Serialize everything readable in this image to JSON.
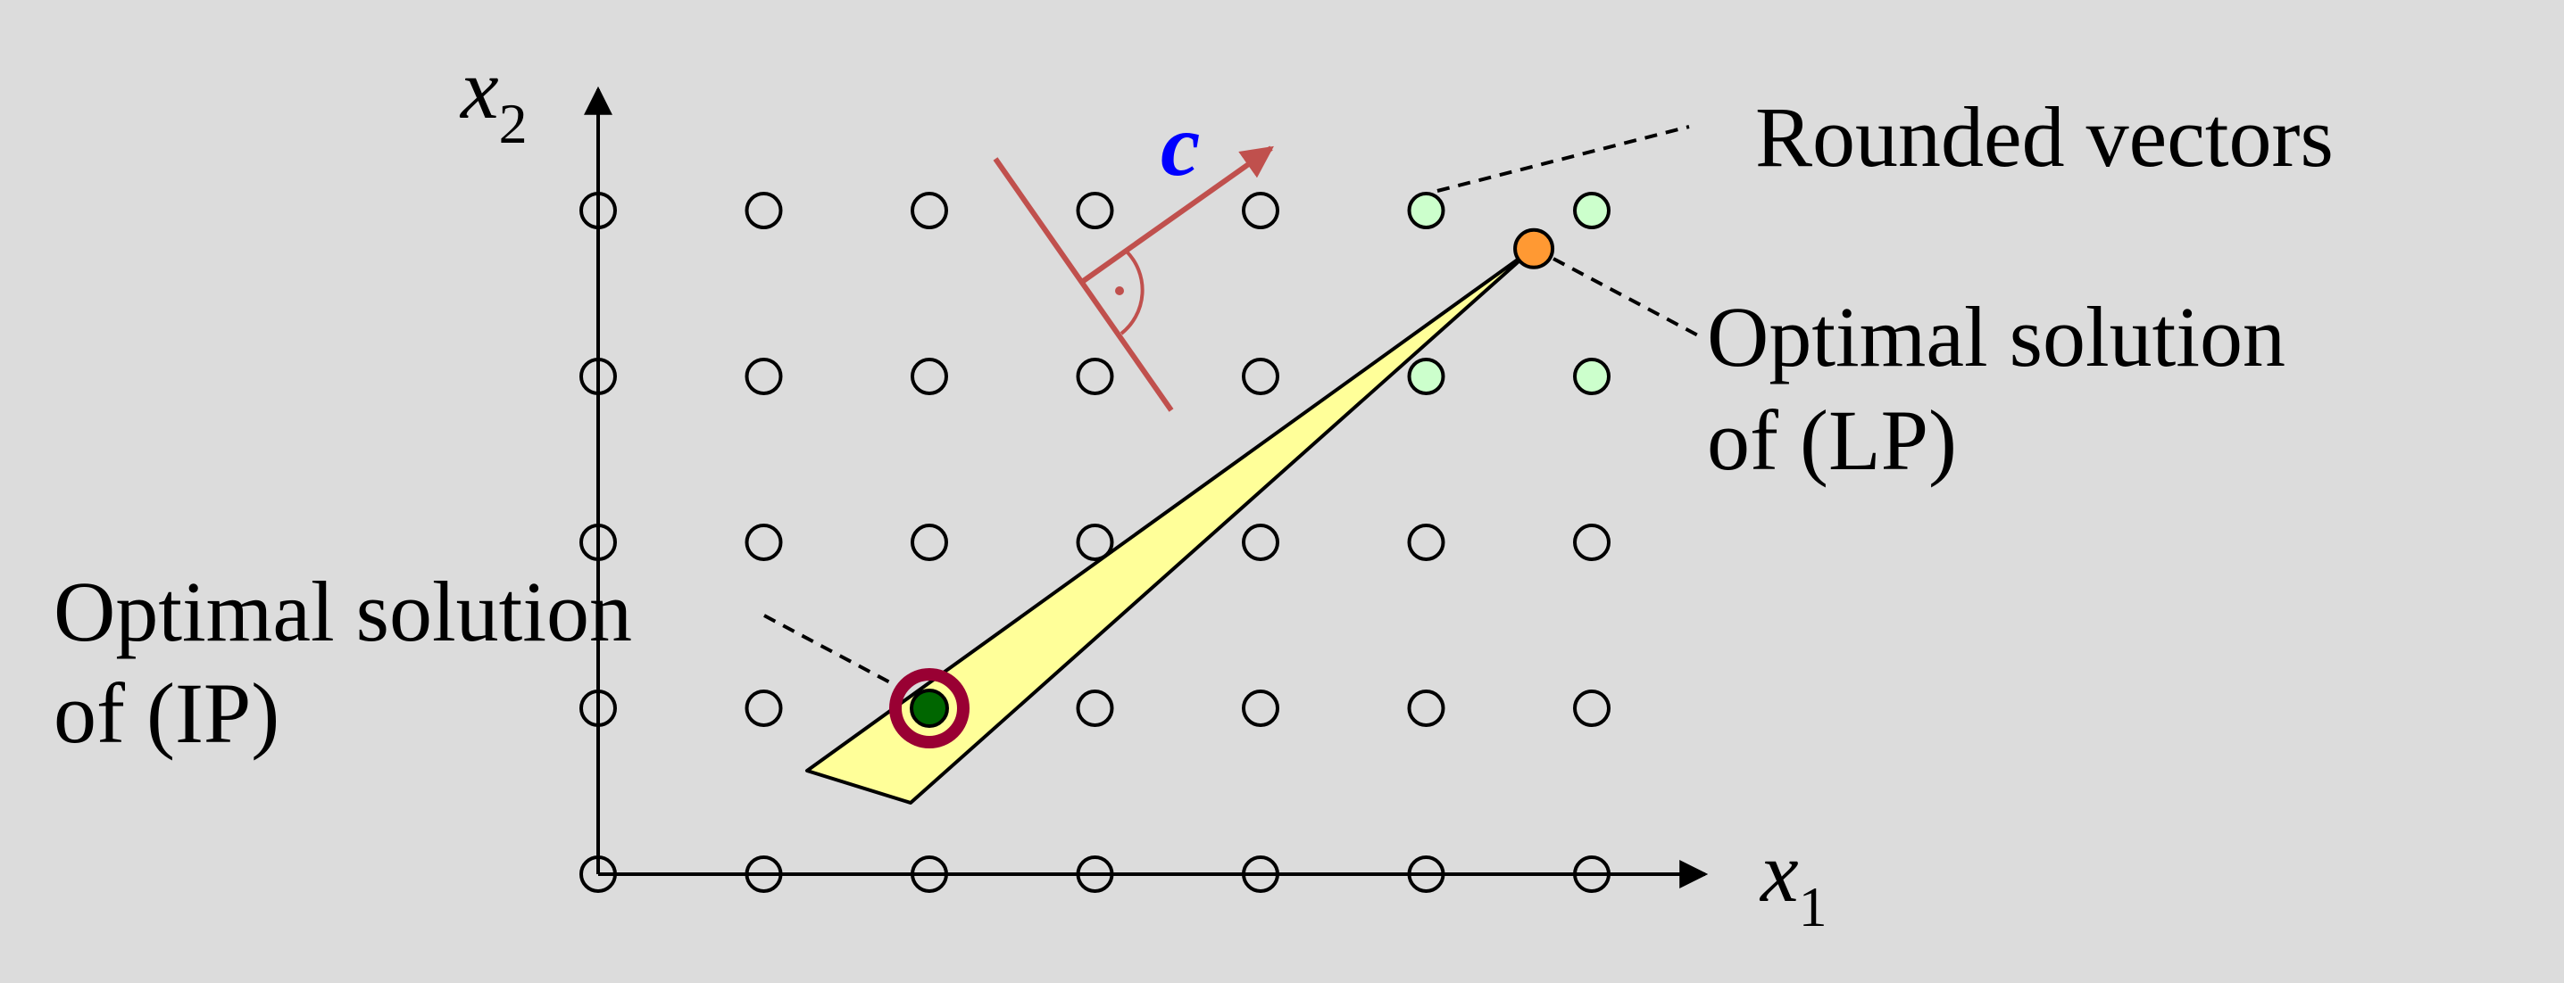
{
  "diagram": {
    "axes": {
      "x_label": "x",
      "x_subscript": "1",
      "y_label": "x",
      "y_subscript": "2"
    },
    "objective_vector_label": "c",
    "rounded_label": "Rounded vectors",
    "lp_label": {
      "line1": "Optimal solution",
      "line2": "of (LP)"
    },
    "ip_label": {
      "line1": "Optimal solution",
      "line2": "of (IP)"
    },
    "lattice": {
      "cols": 7,
      "rows": 5
    },
    "rounded_vectors": [
      [
        5,
        4
      ],
      [
        6,
        4
      ],
      [
        5,
        3
      ],
      [
        6,
        3
      ]
    ],
    "lp_optimum": [
      5.65,
      3.77
    ],
    "ip_optimum": [
      2,
      1
    ],
    "colors": {
      "background": "#dcdcdc",
      "feasible_region": "#ffff99",
      "rounded_point": "#ccffcc",
      "lp_point": "#ff9933",
      "ip_point": "#006600",
      "ip_ring": "#990033",
      "objective": "#c0504d",
      "objective_label": "#0000ff"
    }
  }
}
